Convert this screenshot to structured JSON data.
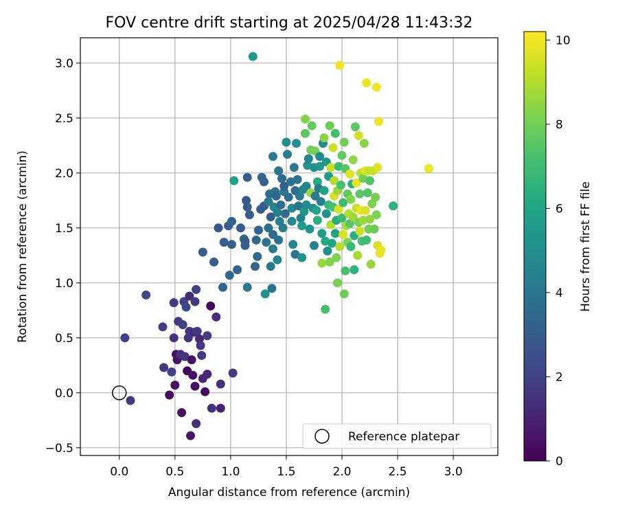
{
  "chart_data": {
    "type": "scatter",
    "title": "FOV centre drift starting at 2025/04/28 11:43:32",
    "xlabel": "Angular distance from reference (arcmin)",
    "ylabel": "Rotation from reference (arcmin)",
    "xlim": [
      -0.35,
      3.4
    ],
    "ylim": [
      -0.57,
      3.23
    ],
    "xticks": [
      0.0,
      0.5,
      1.0,
      1.5,
      2.0,
      2.5,
      3.0
    ],
    "yticks": [
      -0.5,
      0.0,
      0.5,
      1.0,
      1.5,
      2.0,
      2.5,
      3.0
    ],
    "xtick_labels": [
      "0.0",
      "0.5",
      "1.0",
      "1.5",
      "2.0",
      "2.5",
      "3.0"
    ],
    "ytick_labels": [
      "−0.5",
      "0.0",
      "0.5",
      "1.0",
      "1.5",
      "2.0",
      "2.5",
      "3.0"
    ],
    "grid": true,
    "colormap": "viridis",
    "colorbar": {
      "label": "Hours from first FF file",
      "range": [
        0,
        10.2
      ],
      "ticks": [
        0,
        2,
        4,
        6,
        8,
        10
      ],
      "tick_labels": [
        "0",
        "2",
        "4",
        "6",
        "8",
        "10"
      ]
    },
    "legend": {
      "placement": "lower-right",
      "entries": [
        {
          "label": "Reference platepar",
          "marker": "open-circle"
        }
      ]
    },
    "reference_point": {
      "x": 0.0,
      "y": 0.0
    },
    "points": [
      [
        0.1,
        -0.07,
        1.6
      ],
      [
        0.05,
        0.5,
        1.9
      ],
      [
        0.24,
        0.89,
        2.1
      ],
      [
        0.39,
        0.6,
        1.8
      ],
      [
        0.4,
        0.23,
        1.7
      ],
      [
        0.45,
        -0.02,
        0.3
      ],
      [
        0.47,
        0.19,
        1.9
      ],
      [
        0.49,
        0.5,
        1.5
      ],
      [
        0.49,
        0.82,
        1.7
      ],
      [
        0.5,
        0.07,
        0.4
      ],
      [
        0.51,
        0.35,
        0.5
      ],
      [
        0.52,
        0.3,
        0.6
      ],
      [
        0.53,
        0.65,
        1.8
      ],
      [
        0.55,
        0.35,
        1.5
      ],
      [
        0.56,
        -0.18,
        0.5
      ],
      [
        0.57,
        0.62,
        1.9
      ],
      [
        0.58,
        0.83,
        2.0
      ],
      [
        0.59,
        0.33,
        1.6
      ],
      [
        0.6,
        0.78,
        2.1
      ],
      [
        0.61,
        0.2,
        0.2
      ],
      [
        0.62,
        0.5,
        1.5
      ],
      [
        0.63,
        0.56,
        1.6
      ],
      [
        0.63,
        0.88,
        1.3
      ],
      [
        0.64,
        -0.39,
        0.6
      ],
      [
        0.65,
        0.3,
        0.5
      ],
      [
        0.66,
        0.16,
        0.4
      ],
      [
        0.67,
        0.55,
        1.3
      ],
      [
        0.68,
        0.06,
        0.4
      ],
      [
        0.68,
        0.83,
        1.7
      ],
      [
        0.69,
        -0.28,
        1.3
      ],
      [
        0.69,
        0.94,
        1.9
      ],
      [
        0.7,
        0.56,
        1.7
      ],
      [
        0.72,
        0.49,
        1.2
      ],
      [
        0.73,
        0.43,
        1.6
      ],
      [
        0.74,
        0.34,
        1.7
      ],
      [
        0.75,
        0.13,
        1.1
      ],
      [
        0.77,
        0.01,
        0.3
      ],
      [
        0.79,
        0.17,
        1.1
      ],
      [
        0.79,
        0.52,
        1.8
      ],
      [
        0.82,
        0.79,
        0.3
      ],
      [
        0.83,
        -0.14,
        1.4
      ],
      [
        0.87,
        0.69,
        1.3
      ],
      [
        0.89,
        1.5,
        2.8
      ],
      [
        0.91,
        0.08,
        1.4
      ],
      [
        0.91,
        -0.14,
        1.0
      ],
      [
        0.75,
        1.28,
        3.0
      ],
      [
        0.85,
        1.19,
        3.0
      ],
      [
        0.93,
        0.96,
        3.3
      ],
      [
        0.94,
        1.37,
        3.0
      ],
      [
        0.98,
        1.52,
        3.1
      ],
      [
        0.99,
        1.07,
        3.4
      ],
      [
        1.01,
        1.56,
        3.2
      ],
      [
        1.01,
        1.35,
        3.1
      ],
      [
        1.02,
        0.18,
        1.8
      ],
      [
        1.03,
        1.93,
        5.7
      ],
      [
        1.06,
        1.12,
        3.3
      ],
      [
        1.09,
        1.5,
        3.0
      ],
      [
        1.12,
        1.4,
        3.5
      ],
      [
        1.13,
        1.38,
        3.0
      ],
      [
        1.14,
        1.75,
        2.8
      ],
      [
        1.15,
        1.69,
        3.0
      ],
      [
        1.13,
        1.34,
        3.1
      ],
      [
        1.17,
        1.62,
        2.9
      ],
      [
        1.15,
        0.96,
        4.1
      ],
      [
        1.15,
        1.96,
        2.9
      ],
      [
        1.2,
        3.06,
        5.5
      ],
      [
        1.22,
        1.15,
        3.3
      ],
      [
        1.23,
        1.39,
        3.4
      ],
      [
        1.24,
        1.24,
        3.5
      ],
      [
        1.25,
        1.48,
        3.3
      ],
      [
        1.27,
        1.67,
        2.9
      ],
      [
        1.28,
        1.96,
        3.4
      ],
      [
        1.3,
        1.92,
        3.1
      ],
      [
        1.3,
        1.7,
        3.0
      ],
      [
        1.31,
        0.9,
        5.2
      ],
      [
        1.32,
        1.37,
        4.0
      ],
      [
        1.34,
        1.74,
        4.2
      ],
      [
        1.34,
        1.5,
        3.8
      ],
      [
        1.35,
        1.81,
        3.5
      ],
      [
        1.36,
        1.6,
        3.0
      ],
      [
        1.36,
        1.15,
        4.1
      ],
      [
        1.37,
        0.95,
        3.9
      ],
      [
        1.38,
        1.31,
        4.2
      ],
      [
        1.38,
        1.44,
        3.6
      ],
      [
        1.38,
        2.15,
        4.2
      ],
      [
        1.39,
        1.69,
        4.7
      ],
      [
        1.4,
        1.83,
        3.8
      ],
      [
        1.41,
        1.79,
        3.4
      ],
      [
        1.42,
        1.64,
        4.5
      ],
      [
        1.42,
        1.21,
        4.6
      ],
      [
        1.43,
        1.39,
        3.8
      ],
      [
        1.43,
        2.02,
        4.0
      ],
      [
        1.44,
        1.56,
        4.3
      ],
      [
        1.45,
        1.71,
        3.6
      ],
      [
        1.46,
        1.95,
        3.5
      ],
      [
        1.47,
        1.5,
        4.2
      ],
      [
        1.48,
        1.83,
        4.0
      ],
      [
        1.48,
        1.88,
        3.2
      ],
      [
        1.49,
        1.63,
        3.5
      ],
      [
        1.5,
        2.28,
        5.0
      ],
      [
        1.51,
        2.17,
        4.2
      ],
      [
        1.52,
        1.78,
        3.8
      ],
      [
        1.54,
        1.92,
        3.8
      ],
      [
        1.55,
        1.68,
        4.8
      ],
      [
        1.55,
        1.56,
        4.8
      ],
      [
        1.56,
        1.35,
        4.6
      ],
      [
        1.57,
        2.05,
        4.1
      ],
      [
        1.58,
        1.84,
        3.6
      ],
      [
        1.58,
        1.26,
        4.0
      ],
      [
        1.59,
        2.27,
        5.1
      ],
      [
        1.6,
        1.94,
        3.9
      ],
      [
        1.61,
        1.7,
        3.9
      ],
      [
        1.62,
        1.79,
        4.2
      ],
      [
        1.63,
        1.59,
        4.3
      ],
      [
        1.64,
        1.52,
        5.5
      ],
      [
        1.64,
        1.23,
        5.1
      ],
      [
        1.65,
        1.85,
        4.6
      ],
      [
        1.66,
        1.65,
        5.3
      ],
      [
        1.67,
        2.36,
        7.6
      ],
      [
        1.67,
        2.49,
        8.3
      ],
      [
        1.68,
        1.71,
        4.8
      ],
      [
        1.68,
        1.88,
        4.6
      ],
      [
        1.69,
        2.07,
        5.2
      ],
      [
        1.7,
        2.13,
        4.6
      ],
      [
        1.71,
        1.49,
        5.1
      ],
      [
        1.72,
        1.82,
        8.6
      ],
      [
        1.72,
        2.21,
        8.0
      ],
      [
        1.73,
        2.43,
        7.8
      ],
      [
        1.74,
        1.68,
        5.0
      ],
      [
        1.75,
        1.34,
        4.7
      ],
      [
        1.75,
        2.05,
        5.0
      ],
      [
        1.76,
        1.79,
        4.2
      ],
      [
        1.76,
        2.2,
        8.1
      ],
      [
        1.77,
        1.66,
        5.9
      ],
      [
        1.78,
        1.92,
        6.2
      ],
      [
        1.78,
        1.57,
        6.4
      ],
      [
        1.79,
        1.86,
        4.2
      ],
      [
        1.8,
        2.06,
        5.4
      ],
      [
        1.8,
        2.15,
        4.9
      ],
      [
        1.81,
        1.74,
        4.3
      ],
      [
        1.82,
        1.45,
        5.6
      ],
      [
        1.82,
        1.18,
        8.6
      ],
      [
        1.83,
        2.27,
        4.9
      ],
      [
        1.84,
        1.84,
        5.9
      ],
      [
        1.84,
        2.32,
        8.4
      ],
      [
        1.85,
        1.38,
        6.2
      ],
      [
        1.85,
        0.76,
        7.2
      ],
      [
        1.86,
        1.63,
        5.2
      ],
      [
        1.86,
        2.1,
        5.3
      ],
      [
        1.87,
        1.29,
        5.1
      ],
      [
        1.88,
        1.97,
        5.6
      ],
      [
        1.88,
        1.71,
        6.8
      ],
      [
        1.89,
        2.43,
        7.9
      ],
      [
        1.89,
        1.19,
        8.3
      ],
      [
        1.9,
        1.53,
        9.0
      ],
      [
        1.9,
        2.05,
        9.3
      ],
      [
        1.91,
        1.36,
        6.0
      ],
      [
        1.92,
        1.69,
        7.2
      ],
      [
        1.92,
        2.23,
        9.4
      ],
      [
        1.93,
        1.93,
        9.0
      ],
      [
        1.93,
        1.79,
        9.6
      ],
      [
        1.94,
        2.36,
        7.1
      ],
      [
        1.94,
        1.45,
        5.9
      ],
      [
        1.95,
        1.57,
        6.3
      ],
      [
        1.95,
        1.23,
        8.2
      ],
      [
        1.96,
        1.0,
        8.1
      ],
      [
        1.96,
        1.84,
        8.7
      ],
      [
        1.97,
        2.06,
        7.0
      ],
      [
        1.97,
        1.67,
        9.6
      ],
      [
        1.98,
        2.98,
        10.0
      ],
      [
        1.98,
        1.33,
        9.1
      ],
      [
        1.99,
        1.89,
        7.2
      ],
      [
        2.0,
        1.59,
        6.9
      ],
      [
        2.0,
        2.16,
        7.7
      ],
      [
        2.01,
        1.73,
        7.0
      ],
      [
        2.01,
        1.44,
        9.6
      ],
      [
        2.02,
        0.9,
        7.9
      ],
      [
        2.02,
        2.28,
        8.0
      ],
      [
        2.03,
        1.11,
        7.2
      ],
      [
        2.03,
        2.04,
        7.5
      ],
      [
        2.04,
        1.52,
        8.8
      ],
      [
        2.05,
        1.81,
        7.7
      ],
      [
        2.05,
        1.37,
        8.2
      ],
      [
        2.06,
        1.63,
        9.0
      ],
      [
        2.07,
        1.99,
        9.7
      ],
      [
        2.07,
        1.54,
        7.5
      ],
      [
        2.08,
        1.76,
        8.3
      ],
      [
        2.08,
        1.33,
        6.8
      ],
      [
        2.09,
        1.9,
        6.5
      ],
      [
        2.1,
        1.6,
        8.7
      ],
      [
        2.1,
        2.12,
        8.5
      ],
      [
        2.11,
        1.43,
        6.3
      ],
      [
        2.11,
        1.12,
        6.5
      ],
      [
        2.12,
        2.42,
        7.6
      ],
      [
        2.13,
        1.68,
        9.3
      ],
      [
        2.13,
        1.91,
        9.9
      ],
      [
        2.14,
        1.25,
        8.9
      ],
      [
        2.15,
        1.55,
        8.2
      ],
      [
        2.15,
        2.34,
        9.5
      ],
      [
        2.16,
        1.81,
        7.6
      ],
      [
        2.16,
        1.47,
        9.4
      ],
      [
        2.17,
        2.0,
        9.1
      ],
      [
        2.17,
        1.66,
        9.9
      ],
      [
        2.18,
        1.38,
        7.1
      ],
      [
        2.19,
        1.95,
        8.0
      ],
      [
        2.19,
        1.57,
        8.7
      ],
      [
        2.2,
        2.27,
        8.4
      ],
      [
        2.21,
        1.66,
        9.6
      ],
      [
        2.21,
        2.02,
        9.7
      ],
      [
        2.22,
        1.39,
        7.0
      ],
      [
        2.22,
        2.82,
        9.9
      ],
      [
        2.23,
        1.82,
        7.4
      ],
      [
        2.24,
        1.49,
        8.0
      ],
      [
        2.24,
        2.02,
        9.3
      ],
      [
        2.25,
        1.93,
        7.4
      ],
      [
        2.25,
        1.58,
        8.5
      ],
      [
        2.26,
        1.17,
        8.6
      ],
      [
        2.27,
        1.72,
        8.2
      ],
      [
        2.28,
        2.02,
        9.3
      ],
      [
        2.29,
        1.49,
        7.9
      ],
      [
        2.3,
        1.78,
        8.1
      ],
      [
        2.31,
        2.78,
        10.0
      ],
      [
        2.31,
        1.62,
        8.2
      ],
      [
        2.32,
        1.34,
        9.6
      ],
      [
        2.32,
        2.05,
        9.7
      ],
      [
        2.33,
        2.47,
        9.9
      ],
      [
        2.34,
        1.27,
        10.0
      ],
      [
        2.35,
        1.3,
        9.8
      ],
      [
        2.46,
        1.7,
        6.5
      ],
      [
        2.78,
        2.04,
        9.9
      ]
    ]
  }
}
